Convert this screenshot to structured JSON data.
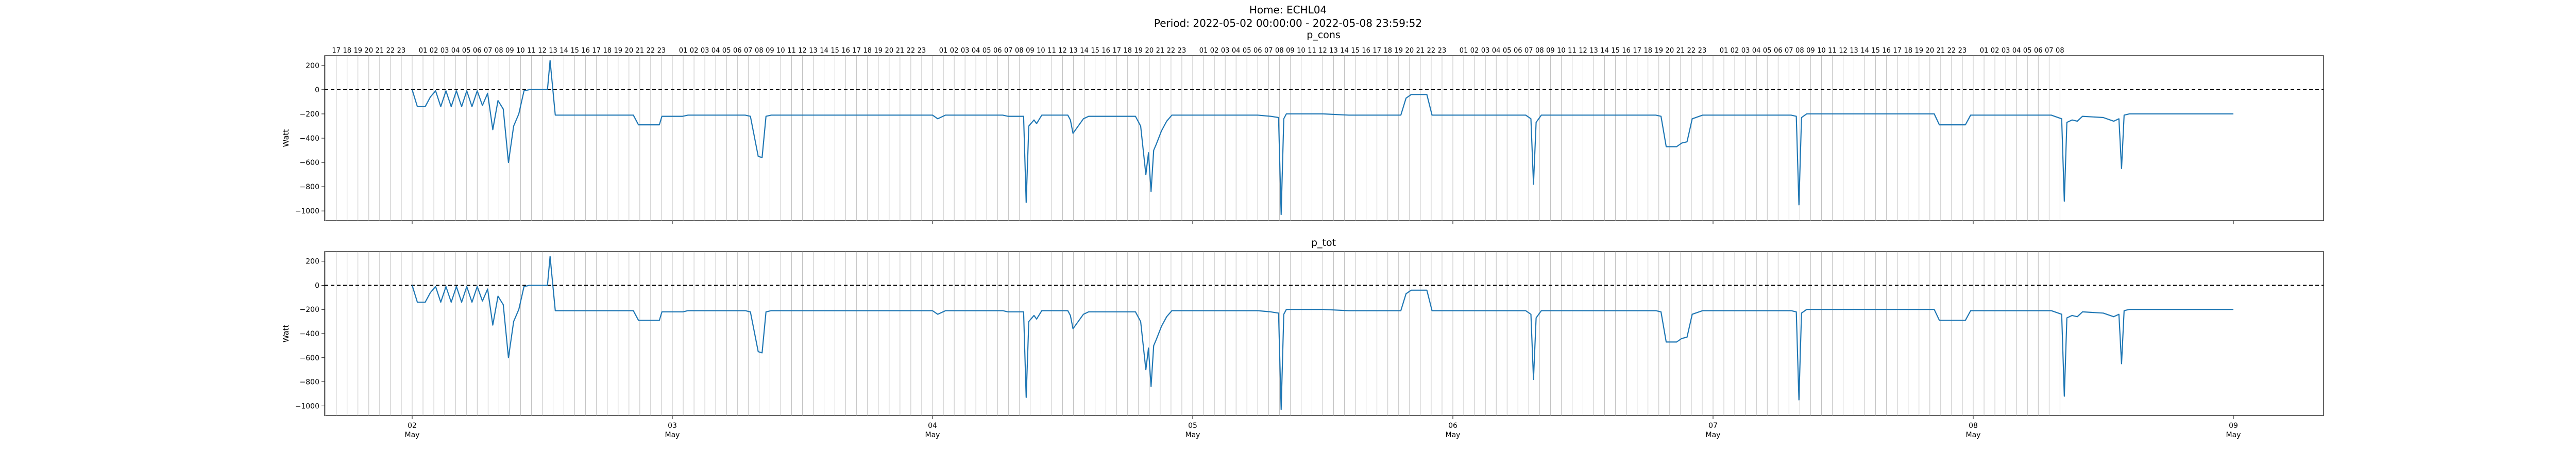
{
  "figure": {
    "title_line1": "Home: ECHL04",
    "title_line2": "Period: 2022-05-02 00:00:00 - 2022-05-08 23:59:52"
  },
  "colors": {
    "series": "#1f77b4",
    "hline": "#000000",
    "grid": "#b0b0b0"
  },
  "chart_data": [
    {
      "type": "line",
      "title": "p_cons",
      "ylabel": "Watt",
      "ylim": [
        -1080,
        280
      ],
      "yticks": [
        200,
        0,
        -200,
        -400,
        -600,
        -800,
        -1000
      ],
      "xlim_days": [
        -0.68,
        6.35
      ],
      "x_major_ticks": [
        {
          "day": "02",
          "month": "May"
        },
        {
          "day": "03",
          "month": "May"
        },
        {
          "day": "04",
          "month": "May"
        },
        {
          "day": "05",
          "month": "May"
        },
        {
          "day": "06",
          "month": "May"
        },
        {
          "day": "07",
          "month": "May"
        },
        {
          "day": "08",
          "month": "May"
        },
        {
          "day": "09",
          "month": "May"
        }
      ],
      "hour_tick_labels_top": true,
      "hourly_grid": true,
      "reference_line": 0,
      "series": [
        {
          "points": [
            [
              0.0,
              0
            ],
            [
              0.02,
              -140
            ],
            [
              0.05,
              -140
            ],
            [
              0.07,
              -60
            ],
            [
              0.09,
              -10
            ],
            [
              0.11,
              -140
            ],
            [
              0.13,
              -10
            ],
            [
              0.15,
              -140
            ],
            [
              0.17,
              -10
            ],
            [
              0.19,
              -140
            ],
            [
              0.21,
              -10
            ],
            [
              0.23,
              -140
            ],
            [
              0.25,
              -10
            ],
            [
              0.27,
              -130
            ],
            [
              0.29,
              -30
            ],
            [
              0.31,
              -330
            ],
            [
              0.33,
              -90
            ],
            [
              0.35,
              -160
            ],
            [
              0.37,
              -600
            ],
            [
              0.39,
              -300
            ],
            [
              0.41,
              -200
            ],
            [
              0.43,
              -10
            ],
            [
              0.45,
              0
            ],
            [
              0.48,
              0
            ],
            [
              0.52,
              0
            ],
            [
              0.53,
              240
            ],
            [
              0.55,
              -210
            ],
            [
              0.85,
              -210
            ],
            [
              0.87,
              -290
            ],
            [
              0.95,
              -290
            ],
            [
              0.96,
              -220
            ],
            [
              1.04,
              -220
            ],
            [
              1.06,
              -210
            ],
            [
              1.28,
              -210
            ],
            [
              1.3,
              -220
            ],
            [
              1.33,
              -550
            ],
            [
              1.345,
              -560
            ],
            [
              1.36,
              -220
            ],
            [
              1.38,
              -210
            ],
            [
              2.0,
              -210
            ],
            [
              2.02,
              -240
            ],
            [
              2.05,
              -210
            ],
            [
              2.27,
              -210
            ],
            [
              2.29,
              -220
            ],
            [
              2.35,
              -220
            ],
            [
              2.36,
              -930
            ],
            [
              2.37,
              -300
            ],
            [
              2.39,
              -250
            ],
            [
              2.4,
              -280
            ],
            [
              2.42,
              -210
            ],
            [
              2.52,
              -210
            ],
            [
              2.53,
              -250
            ],
            [
              2.54,
              -360
            ],
            [
              2.56,
              -300
            ],
            [
              2.58,
              -240
            ],
            [
              2.6,
              -220
            ],
            [
              2.78,
              -220
            ],
            [
              2.8,
              -300
            ],
            [
              2.82,
              -700
            ],
            [
              2.83,
              -520
            ],
            [
              2.84,
              -840
            ],
            [
              2.85,
              -500
            ],
            [
              2.86,
              -450
            ],
            [
              2.88,
              -340
            ],
            [
              2.9,
              -260
            ],
            [
              2.92,
              -210
            ],
            [
              2.94,
              -210
            ],
            [
              2.97,
              -210
            ],
            [
              3.0,
              -210
            ],
            [
              3.15,
              -210
            ],
            [
              3.25,
              -210
            ],
            [
              3.3,
              -220
            ],
            [
              3.33,
              -230
            ],
            [
              3.34,
              -1030
            ],
            [
              3.35,
              -240
            ],
            [
              3.36,
              -200
            ],
            [
              3.5,
              -200
            ],
            [
              3.6,
              -210
            ],
            [
              3.8,
              -210
            ],
            [
              3.82,
              -70
            ],
            [
              3.84,
              -40
            ],
            [
              3.9,
              -40
            ],
            [
              3.92,
              -210
            ],
            [
              4.0,
              -210
            ],
            [
              4.2,
              -210
            ],
            [
              4.28,
              -210
            ],
            [
              4.3,
              -240
            ],
            [
              4.31,
              -780
            ],
            [
              4.32,
              -270
            ],
            [
              4.34,
              -210
            ],
            [
              4.5,
              -210
            ],
            [
              4.6,
              -210
            ],
            [
              4.78,
              -210
            ],
            [
              4.8,
              -220
            ],
            [
              4.82,
              -470
            ],
            [
              4.86,
              -470
            ],
            [
              4.88,
              -440
            ],
            [
              4.9,
              -430
            ],
            [
              4.92,
              -240
            ],
            [
              4.96,
              -210
            ],
            [
              5.2,
              -210
            ],
            [
              5.3,
              -210
            ],
            [
              5.32,
              -220
            ],
            [
              5.33,
              -950
            ],
            [
              5.34,
              -230
            ],
            [
              5.36,
              -200
            ],
            [
              5.5,
              -200
            ],
            [
              5.85,
              -200
            ],
            [
              5.87,
              -290
            ],
            [
              5.97,
              -290
            ],
            [
              5.99,
              -210
            ],
            [
              6.3,
              -210
            ],
            [
              6.34,
              -240
            ],
            [
              6.35,
              -920
            ],
            [
              6.36,
              -270
            ],
            [
              6.38,
              -250
            ],
            [
              6.4,
              -260
            ],
            [
              6.42,
              -220
            ],
            [
              6.5,
              -230
            ],
            [
              6.54,
              -260
            ],
            [
              6.56,
              -240
            ],
            [
              6.57,
              -650
            ],
            [
              6.58,
              -210
            ],
            [
              6.6,
              -200
            ],
            [
              6.8,
              -200
            ],
            [
              7.0,
              -200
            ]
          ]
        }
      ]
    },
    {
      "type": "line",
      "title": "p_tot",
      "ylabel": "Watt",
      "ylim": [
        -1080,
        280
      ],
      "yticks": [
        200,
        0,
        -200,
        -400,
        -600,
        -800,
        -1000
      ],
      "xlim_days": [
        -0.68,
        6.35
      ],
      "x_major_ticks": [
        {
          "day": "02",
          "month": "May"
        },
        {
          "day": "03",
          "month": "May"
        },
        {
          "day": "04",
          "month": "May"
        },
        {
          "day": "05",
          "month": "May"
        },
        {
          "day": "06",
          "month": "May"
        },
        {
          "day": "07",
          "month": "May"
        },
        {
          "day": "08",
          "month": "May"
        },
        {
          "day": "09",
          "month": "May"
        }
      ],
      "hour_tick_labels_top": false,
      "hourly_grid": true,
      "reference_line": 0,
      "series": [
        {
          "points": [
            [
              0.0,
              0
            ],
            [
              0.02,
              -140
            ],
            [
              0.05,
              -140
            ],
            [
              0.07,
              -60
            ],
            [
              0.09,
              -10
            ],
            [
              0.11,
              -140
            ],
            [
              0.13,
              -10
            ],
            [
              0.15,
              -140
            ],
            [
              0.17,
              -10
            ],
            [
              0.19,
              -140
            ],
            [
              0.21,
              -10
            ],
            [
              0.23,
              -140
            ],
            [
              0.25,
              -10
            ],
            [
              0.27,
              -130
            ],
            [
              0.29,
              -30
            ],
            [
              0.31,
              -330
            ],
            [
              0.33,
              -90
            ],
            [
              0.35,
              -160
            ],
            [
              0.37,
              -600
            ],
            [
              0.39,
              -300
            ],
            [
              0.41,
              -200
            ],
            [
              0.43,
              -10
            ],
            [
              0.45,
              0
            ],
            [
              0.48,
              0
            ],
            [
              0.52,
              0
            ],
            [
              0.53,
              240
            ],
            [
              0.55,
              -210
            ],
            [
              0.85,
              -210
            ],
            [
              0.87,
              -290
            ],
            [
              0.95,
              -290
            ],
            [
              0.96,
              -220
            ],
            [
              1.04,
              -220
            ],
            [
              1.06,
              -210
            ],
            [
              1.28,
              -210
            ],
            [
              1.3,
              -220
            ],
            [
              1.33,
              -550
            ],
            [
              1.345,
              -560
            ],
            [
              1.36,
              -220
            ],
            [
              1.38,
              -210
            ],
            [
              2.0,
              -210
            ],
            [
              2.02,
              -240
            ],
            [
              2.05,
              -210
            ],
            [
              2.27,
              -210
            ],
            [
              2.29,
              -220
            ],
            [
              2.35,
              -220
            ],
            [
              2.36,
              -930
            ],
            [
              2.37,
              -300
            ],
            [
              2.39,
              -250
            ],
            [
              2.4,
              -280
            ],
            [
              2.42,
              -210
            ],
            [
              2.52,
              -210
            ],
            [
              2.53,
              -250
            ],
            [
              2.54,
              -360
            ],
            [
              2.56,
              -300
            ],
            [
              2.58,
              -240
            ],
            [
              2.6,
              -220
            ],
            [
              2.78,
              -220
            ],
            [
              2.8,
              -300
            ],
            [
              2.82,
              -700
            ],
            [
              2.83,
              -520
            ],
            [
              2.84,
              -840
            ],
            [
              2.85,
              -500
            ],
            [
              2.86,
              -450
            ],
            [
              2.88,
              -340
            ],
            [
              2.9,
              -260
            ],
            [
              2.92,
              -210
            ],
            [
              2.94,
              -210
            ],
            [
              2.97,
              -210
            ],
            [
              3.0,
              -210
            ],
            [
              3.15,
              -210
            ],
            [
              3.25,
              -210
            ],
            [
              3.3,
              -220
            ],
            [
              3.33,
              -230
            ],
            [
              3.34,
              -1030
            ],
            [
              3.35,
              -240
            ],
            [
              3.36,
              -200
            ],
            [
              3.5,
              -200
            ],
            [
              3.6,
              -210
            ],
            [
              3.8,
              -210
            ],
            [
              3.82,
              -70
            ],
            [
              3.84,
              -40
            ],
            [
              3.9,
              -40
            ],
            [
              3.92,
              -210
            ],
            [
              4.0,
              -210
            ],
            [
              4.2,
              -210
            ],
            [
              4.28,
              -210
            ],
            [
              4.3,
              -240
            ],
            [
              4.31,
              -780
            ],
            [
              4.32,
              -270
            ],
            [
              4.34,
              -210
            ],
            [
              4.5,
              -210
            ],
            [
              4.6,
              -210
            ],
            [
              4.78,
              -210
            ],
            [
              4.8,
              -220
            ],
            [
              4.82,
              -470
            ],
            [
              4.86,
              -470
            ],
            [
              4.88,
              -440
            ],
            [
              4.9,
              -430
            ],
            [
              4.92,
              -240
            ],
            [
              4.96,
              -210
            ],
            [
              5.2,
              -210
            ],
            [
              5.3,
              -210
            ],
            [
              5.32,
              -220
            ],
            [
              5.33,
              -950
            ],
            [
              5.34,
              -230
            ],
            [
              5.36,
              -200
            ],
            [
              5.5,
              -200
            ],
            [
              5.85,
              -200
            ],
            [
              5.87,
              -290
            ],
            [
              5.97,
              -290
            ],
            [
              5.99,
              -210
            ],
            [
              6.3,
              -210
            ],
            [
              6.34,
              -240
            ],
            [
              6.35,
              -920
            ],
            [
              6.36,
              -270
            ],
            [
              6.38,
              -250
            ],
            [
              6.4,
              -260
            ],
            [
              6.42,
              -220
            ],
            [
              6.5,
              -230
            ],
            [
              6.54,
              -260
            ],
            [
              6.56,
              -240
            ],
            [
              6.57,
              -650
            ],
            [
              6.58,
              -210
            ],
            [
              6.6,
              -200
            ],
            [
              6.8,
              -200
            ],
            [
              7.0,
              -200
            ]
          ]
        }
      ]
    }
  ]
}
